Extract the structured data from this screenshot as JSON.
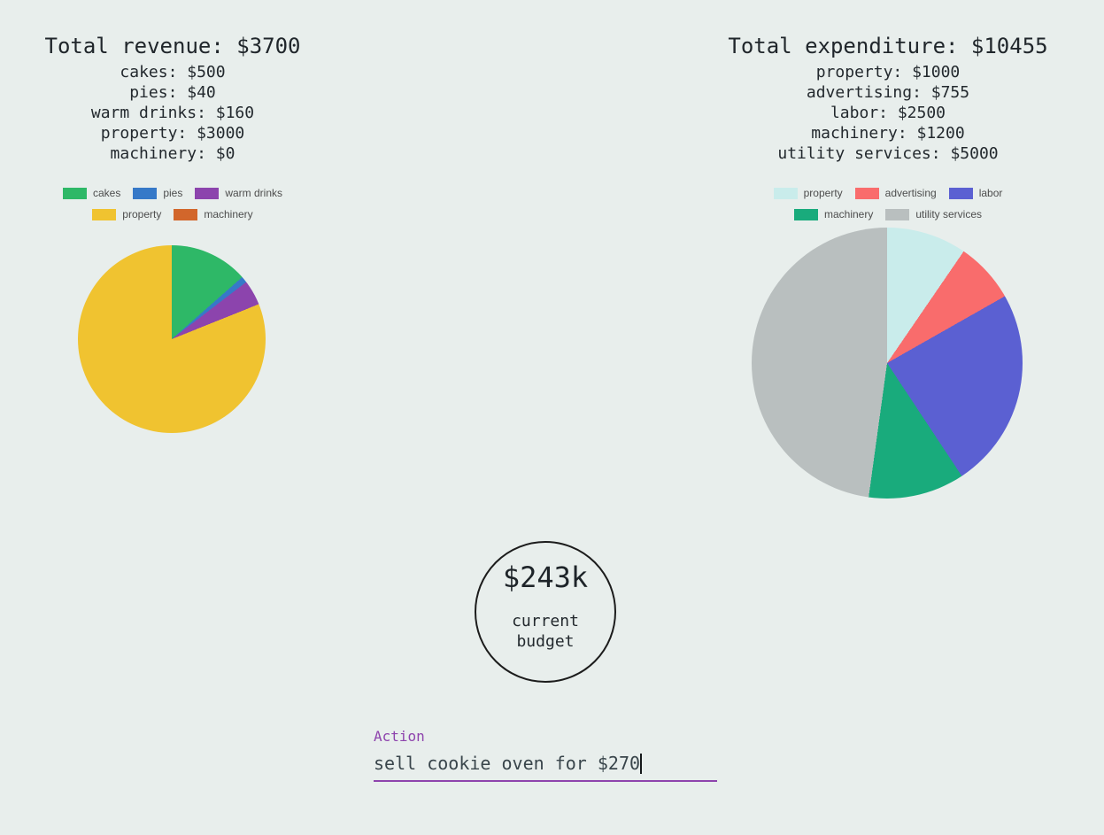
{
  "page": {
    "background": "#e8eeec"
  },
  "chart_data": [
    {
      "type": "pie",
      "title": "Total revenue: $3700",
      "total_label": "Total revenue",
      "total": 3700,
      "labels": [
        "cakes",
        "pies",
        "warm drinks",
        "property",
        "machinery"
      ],
      "values": [
        500,
        40,
        160,
        3000,
        0
      ],
      "colors": [
        "#2eb867",
        "#3679c8",
        "#8c44ad",
        "#f0c330",
        "#d2662b"
      ],
      "legend_position": "above-pie",
      "start_angle": "top-clockwise"
    },
    {
      "type": "pie",
      "title": "Total expenditure: $10455",
      "total_label": "Total expenditure",
      "total": 10455,
      "labels": [
        "property",
        "advertising",
        "labor",
        "machinery",
        "utility services"
      ],
      "values": [
        1000,
        755,
        2500,
        1200,
        5000
      ],
      "colors": [
        "#c9eceb",
        "#f96c6c",
        "#5b60d2",
        "#19ab7c",
        "#b9bfbf"
      ],
      "legend_position": "above-pie",
      "start_angle": "top-clockwise"
    }
  ],
  "budget": {
    "amount": "$243k",
    "caption_line1": "current",
    "caption_line2": "budget"
  },
  "action": {
    "label": "Action",
    "value": "sell cookie oven for $270",
    "accent_color": "#8e44ad"
  }
}
